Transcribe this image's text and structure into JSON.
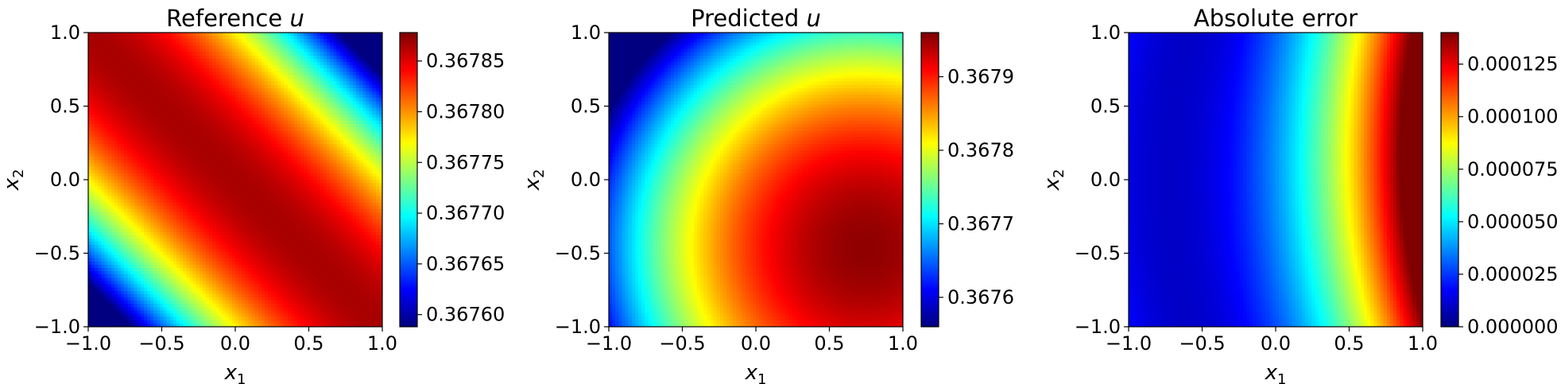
{
  "chart_data": [
    {
      "type": "heatmap",
      "title": "Reference u",
      "title_main": "Reference ",
      "title_var": "u",
      "xlabel": "x1",
      "ylabel": "x2",
      "xlabel_base": "x",
      "xlabel_sub": "1",
      "ylabel_base": "x",
      "ylabel_sub": "2",
      "xlim": [
        -1.0,
        1.0
      ],
      "ylim": [
        -1.0,
        1.0
      ],
      "xticks": [
        -1.0,
        -0.5,
        0.0,
        0.5,
        1.0
      ],
      "xtick_labels": [
        "−1.0",
        "−0.5",
        "0.0",
        "0.5",
        "1.0"
      ],
      "yticks": [
        -1.0,
        -0.5,
        0.0,
        0.5,
        1.0
      ],
      "ytick_labels": [
        "−1.0",
        "−0.5",
        "0.0",
        "0.5",
        "1.0"
      ],
      "colormap": "jet",
      "clim": [
        0.367588,
        0.367878
      ],
      "colorbar_ticks": [
        0.3676,
        0.36765,
        0.3677,
        0.36775,
        0.3678,
        0.36785
      ],
      "colorbar_tick_labels": [
        "0.36760",
        "0.36765",
        "0.36770",
        "0.36775",
        "0.36780",
        "0.36785"
      ],
      "field": "reference"
    },
    {
      "type": "heatmap",
      "title": "Predicted u",
      "title_main": "Predicted ",
      "title_var": "u",
      "xlabel": "x1",
      "ylabel": "x2",
      "xlabel_base": "x",
      "xlabel_sub": "1",
      "ylabel_base": "x",
      "ylabel_sub": "2",
      "xlim": [
        -1.0,
        1.0
      ],
      "ylim": [
        -1.0,
        1.0
      ],
      "xticks": [
        -1.0,
        -0.5,
        0.0,
        0.5,
        1.0
      ],
      "xtick_labels": [
        "−1.0",
        "−0.5",
        "0.0",
        "0.5",
        "1.0"
      ],
      "yticks": [
        -1.0,
        -0.5,
        0.0,
        0.5,
        1.0
      ],
      "ytick_labels": [
        "−1.0",
        "−0.5",
        "0.0",
        "0.5",
        "1.0"
      ],
      "colormap": "jet",
      "clim": [
        0.36756,
        0.36796
      ],
      "colorbar_ticks": [
        0.3676,
        0.3677,
        0.3678,
        0.3679
      ],
      "colorbar_tick_labels": [
        "0.3676",
        "0.3677",
        "0.3678",
        "0.3679"
      ],
      "field": "predicted"
    },
    {
      "type": "heatmap",
      "title": "Absolute error",
      "title_main": "Absolute error",
      "title_var": "",
      "xlabel": "x1",
      "ylabel": "x2",
      "xlabel_base": "x",
      "xlabel_sub": "1",
      "ylabel_base": "x",
      "ylabel_sub": "2",
      "xlim": [
        -1.0,
        1.0
      ],
      "ylim": [
        -1.0,
        1.0
      ],
      "xticks": [
        -1.0,
        -0.5,
        0.0,
        0.5,
        1.0
      ],
      "xtick_labels": [
        "−1.0",
        "−0.5",
        "0.0",
        "0.5",
        "1.0"
      ],
      "yticks": [
        -1.0,
        -0.5,
        0.0,
        0.5,
        1.0
      ],
      "ytick_labels": [
        "−1.0",
        "−0.5",
        "0.0",
        "0.5",
        "1.0"
      ],
      "colormap": "jet",
      "clim": [
        0.0,
        0.00014
      ],
      "colorbar_ticks": [
        0.0,
        2.5e-05,
        5e-05,
        7.5e-05,
        0.0001,
        0.000125
      ],
      "colorbar_tick_labels": [
        "0.000000",
        "0.000025",
        "0.000050",
        "0.000075",
        "0.000100",
        "0.000125"
      ],
      "field": "abs_error"
    }
  ]
}
